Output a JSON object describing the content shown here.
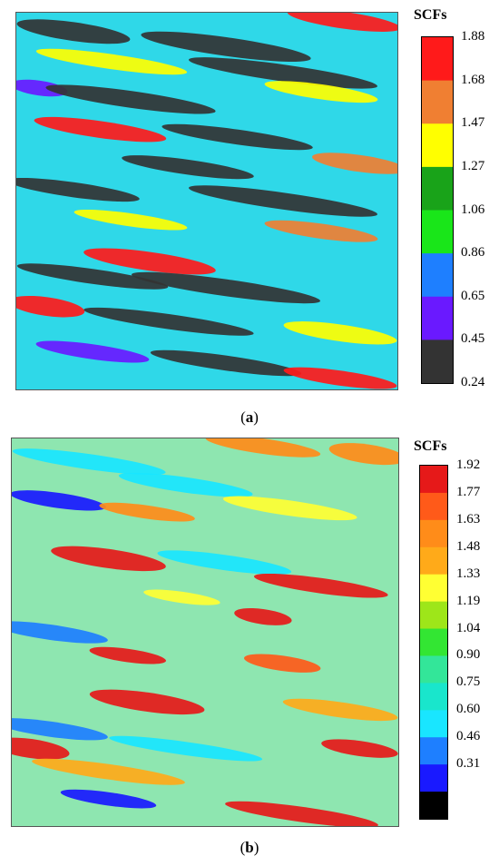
{
  "chart_data": [
    {
      "type": "heatmap",
      "panel_label": "a",
      "caption_open": "(",
      "caption_close": ")",
      "colorbar_title": "SCFs",
      "colorbar_ticks": [
        "1.88",
        "1.68",
        "1.47",
        "1.27",
        "1.06",
        "0.86",
        "0.65",
        "0.45",
        "0.24"
      ],
      "colorbar_values": [
        1.88,
        1.68,
        1.47,
        1.27,
        1.06,
        0.86,
        0.65,
        0.45,
        0.24
      ],
      "colorbar_colors": [
        "#ff1a1a",
        "#f07f32",
        "#ffff00",
        "#19a319",
        "#19e619",
        "#1e7fff",
        "#6a19ff",
        "#333333"
      ],
      "vrange": [
        0.24,
        1.88
      ],
      "background": "#2fd8e8",
      "streaks": [
        {
          "cx": 0.86,
          "cy": 0.02,
          "len": 0.3,
          "wid": 0.035,
          "level": 1.72
        },
        {
          "cx": 0.15,
          "cy": 0.05,
          "len": 0.3,
          "wid": 0.04,
          "level": 0.35
        },
        {
          "cx": 0.55,
          "cy": 0.09,
          "len": 0.45,
          "wid": 0.04,
          "level": 0.3
        },
        {
          "cx": 0.25,
          "cy": 0.13,
          "len": 0.4,
          "wid": 0.03,
          "level": 1.4
        },
        {
          "cx": 0.7,
          "cy": 0.16,
          "len": 0.5,
          "wid": 0.035,
          "level": 0.32
        },
        {
          "cx": 0.8,
          "cy": 0.21,
          "len": 0.3,
          "wid": 0.03,
          "level": 1.45
        },
        {
          "cx": 0.06,
          "cy": 0.2,
          "len": 0.15,
          "wid": 0.03,
          "level": 0.45
        },
        {
          "cx": 0.3,
          "cy": 0.23,
          "len": 0.45,
          "wid": 0.035,
          "level": 0.3
        },
        {
          "cx": 0.22,
          "cy": 0.31,
          "len": 0.35,
          "wid": 0.035,
          "level": 1.8
        },
        {
          "cx": 0.58,
          "cy": 0.33,
          "len": 0.4,
          "wid": 0.03,
          "level": 0.32
        },
        {
          "cx": 0.9,
          "cy": 0.4,
          "len": 0.25,
          "wid": 0.035,
          "level": 1.5
        },
        {
          "cx": 0.45,
          "cy": 0.41,
          "len": 0.35,
          "wid": 0.03,
          "level": 0.3
        },
        {
          "cx": 0.15,
          "cy": 0.47,
          "len": 0.35,
          "wid": 0.03,
          "level": 0.3
        },
        {
          "cx": 0.7,
          "cy": 0.5,
          "len": 0.5,
          "wid": 0.035,
          "level": 0.32
        },
        {
          "cx": 0.3,
          "cy": 0.55,
          "len": 0.3,
          "wid": 0.025,
          "level": 1.45
        },
        {
          "cx": 0.8,
          "cy": 0.58,
          "len": 0.3,
          "wid": 0.03,
          "level": 1.5
        },
        {
          "cx": 0.35,
          "cy": 0.66,
          "len": 0.35,
          "wid": 0.04,
          "level": 1.8
        },
        {
          "cx": 0.2,
          "cy": 0.7,
          "len": 0.4,
          "wid": 0.03,
          "level": 0.3
        },
        {
          "cx": 0.55,
          "cy": 0.73,
          "len": 0.5,
          "wid": 0.035,
          "level": 0.32
        },
        {
          "cx": 0.08,
          "cy": 0.78,
          "len": 0.2,
          "wid": 0.04,
          "level": 1.8
        },
        {
          "cx": 0.4,
          "cy": 0.82,
          "len": 0.45,
          "wid": 0.03,
          "level": 0.3
        },
        {
          "cx": 0.85,
          "cy": 0.85,
          "len": 0.3,
          "wid": 0.035,
          "level": 1.45
        },
        {
          "cx": 0.2,
          "cy": 0.9,
          "len": 0.3,
          "wid": 0.03,
          "level": 0.5
        },
        {
          "cx": 0.55,
          "cy": 0.93,
          "len": 0.4,
          "wid": 0.03,
          "level": 0.32
        },
        {
          "cx": 0.85,
          "cy": 0.97,
          "len": 0.3,
          "wid": 0.03,
          "level": 1.75
        }
      ]
    },
    {
      "type": "heatmap",
      "panel_label": "b",
      "caption_open": "(",
      "caption_close": ")",
      "colorbar_title": "SCFs",
      "colorbar_ticks": [
        "1.92",
        "1.77",
        "1.63",
        "1.48",
        "1.33",
        "1.19",
        "1.04",
        "0.90",
        "0.75",
        "0.60",
        "0.46",
        "0.31"
      ],
      "colorbar_values": [
        1.92,
        1.77,
        1.63,
        1.48,
        1.33,
        1.19,
        1.04,
        0.9,
        0.75,
        0.6,
        0.46,
        0.31
      ],
      "colorbar_colors": [
        "#e61919",
        "#ff5a19",
        "#ff8c19",
        "#ffaa19",
        "#ffff33",
        "#9ee619",
        "#33e633",
        "#33e699",
        "#19e6cc",
        "#19e6ff",
        "#1e7fff",
        "#1919ff",
        "#000000"
      ],
      "vrange": [
        0.17,
        1.92
      ],
      "background": "#8ee6b0",
      "streaks": [
        {
          "cx": 0.65,
          "cy": 0.02,
          "len": 0.3,
          "wid": 0.03,
          "level": 1.65
        },
        {
          "cx": 0.92,
          "cy": 0.04,
          "len": 0.2,
          "wid": 0.04,
          "level": 1.6
        },
        {
          "cx": 0.2,
          "cy": 0.06,
          "len": 0.4,
          "wid": 0.03,
          "level": 0.65
        },
        {
          "cx": 0.45,
          "cy": 0.12,
          "len": 0.35,
          "wid": 0.03,
          "level": 0.7
        },
        {
          "cx": 0.12,
          "cy": 0.16,
          "len": 0.25,
          "wid": 0.03,
          "level": 0.4
        },
        {
          "cx": 0.35,
          "cy": 0.19,
          "len": 0.25,
          "wid": 0.025,
          "level": 1.55
        },
        {
          "cx": 0.72,
          "cy": 0.18,
          "len": 0.35,
          "wid": 0.03,
          "level": 1.35
        },
        {
          "cx": 0.25,
          "cy": 0.31,
          "len": 0.3,
          "wid": 0.04,
          "level": 1.9
        },
        {
          "cx": 0.55,
          "cy": 0.32,
          "len": 0.35,
          "wid": 0.03,
          "level": 0.6
        },
        {
          "cx": 0.8,
          "cy": 0.38,
          "len": 0.35,
          "wid": 0.03,
          "level": 1.8
        },
        {
          "cx": 0.44,
          "cy": 0.41,
          "len": 0.2,
          "wid": 0.02,
          "level": 1.35
        },
        {
          "cx": 0.65,
          "cy": 0.46,
          "len": 0.15,
          "wid": 0.03,
          "level": 1.8
        },
        {
          "cx": 0.1,
          "cy": 0.5,
          "len": 0.3,
          "wid": 0.03,
          "level": 0.55
        },
        {
          "cx": 0.3,
          "cy": 0.56,
          "len": 0.2,
          "wid": 0.025,
          "level": 1.85
        },
        {
          "cx": 0.7,
          "cy": 0.58,
          "len": 0.2,
          "wid": 0.03,
          "level": 1.75
        },
        {
          "cx": 0.35,
          "cy": 0.68,
          "len": 0.3,
          "wid": 0.04,
          "level": 1.9
        },
        {
          "cx": 0.1,
          "cy": 0.75,
          "len": 0.3,
          "wid": 0.03,
          "level": 0.5
        },
        {
          "cx": 0.85,
          "cy": 0.7,
          "len": 0.3,
          "wid": 0.03,
          "level": 1.5
        },
        {
          "cx": 0.05,
          "cy": 0.8,
          "len": 0.2,
          "wid": 0.04,
          "level": 1.88
        },
        {
          "cx": 0.45,
          "cy": 0.8,
          "len": 0.4,
          "wid": 0.025,
          "level": 0.6
        },
        {
          "cx": 0.9,
          "cy": 0.8,
          "len": 0.2,
          "wid": 0.03,
          "level": 1.8
        },
        {
          "cx": 0.25,
          "cy": 0.86,
          "len": 0.4,
          "wid": 0.03,
          "level": 1.45
        },
        {
          "cx": 0.25,
          "cy": 0.93,
          "len": 0.25,
          "wid": 0.025,
          "level": 0.4
        },
        {
          "cx": 0.75,
          "cy": 0.97,
          "len": 0.4,
          "wid": 0.03,
          "level": 1.8
        }
      ]
    }
  ]
}
